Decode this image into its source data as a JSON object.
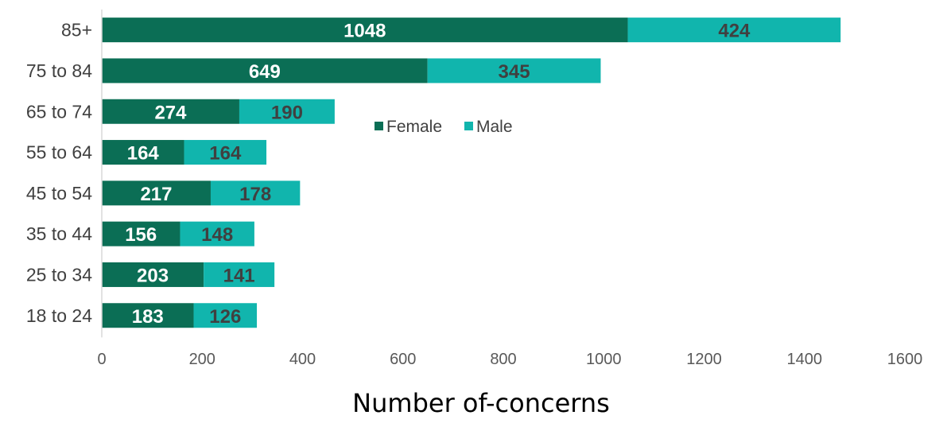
{
  "chart_data": {
    "type": "bar",
    "orientation": "horizontal",
    "stacked": true,
    "categories": [
      "85+",
      "75 to 84",
      "65 to 74",
      "55 to 64",
      "45 to 54",
      "35 to 44",
      "25 to 34",
      "18 to 24"
    ],
    "series": [
      {
        "name": "Female",
        "color": "#0b6e55",
        "values": [
          1048,
          649,
          274,
          164,
          217,
          156,
          203,
          183
        ]
      },
      {
        "name": "Male",
        "color": "#11b5ad",
        "values": [
          424,
          345,
          190,
          164,
          178,
          148,
          141,
          126
        ]
      }
    ],
    "xlabel": "Number of-concerns",
    "xlim": [
      0,
      1600
    ],
    "xticks": [
      0,
      200,
      400,
      600,
      800,
      1000,
      1200,
      1400,
      1600
    ],
    "grid": false,
    "legend_position": "center"
  }
}
